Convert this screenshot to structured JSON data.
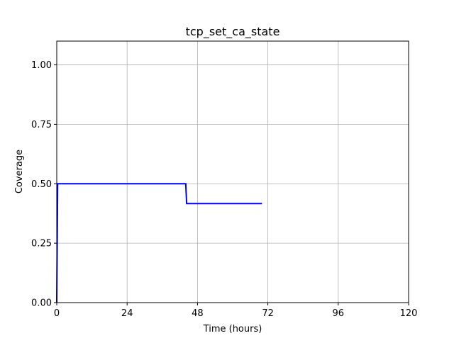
{
  "chart_data": {
    "type": "line",
    "title": "tcp_set_ca_state",
    "xlabel": "Time (hours)",
    "ylabel": "Coverage",
    "xlim": [
      0,
      120
    ],
    "ylim": [
      0,
      1.1
    ],
    "xticks": [
      0,
      24,
      48,
      72,
      96,
      120
    ],
    "xtick_labels": [
      "0",
      "24",
      "48",
      "72",
      "96",
      "120"
    ],
    "yticks": [
      0,
      0.25,
      0.5,
      0.75,
      1.0
    ],
    "ytick_labels": [
      "0.00",
      "0.25",
      "0.50",
      "0.75",
      "1.00"
    ],
    "grid": true,
    "series": [
      {
        "color": "#0000ff",
        "x": [
          0,
          0.3,
          44,
          44.3,
          70
        ],
        "y": [
          0,
          0.5,
          0.5,
          0.4167,
          0.4167
        ]
      }
    ]
  }
}
